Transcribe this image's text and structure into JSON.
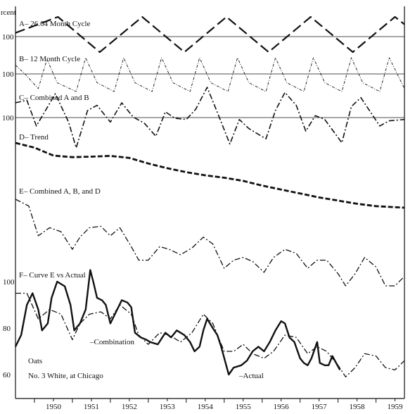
{
  "chart_data": {
    "type": "line",
    "y_unit_label": "rcent",
    "x_axis": {
      "range": [
        1949.5,
        1959.75
      ],
      "tick_labels": [
        "1950",
        "1951",
        "1952",
        "1953",
        "1954",
        "1955",
        "1956",
        "1957",
        "1958",
        "1959"
      ]
    },
    "panels": [
      {
        "id": "A",
        "label": "A–  26.64 Month Cycle",
        "baseline_label": "100",
        "style": "long-dash",
        "stroke_width": 2.2,
        "points": [
          [
            1949.5,
            110
          ],
          [
            1950.62,
            125
          ],
          [
            1951.72,
            92
          ],
          [
            1952.84,
            125
          ],
          [
            1953.95,
            92
          ],
          [
            1955.06,
            125
          ],
          [
            1956.17,
            92
          ],
          [
            1957.28,
            125
          ],
          [
            1958.39,
            92
          ],
          [
            1959.5,
            125
          ],
          [
            1959.75,
            118
          ]
        ]
      },
      {
        "id": "B",
        "label": "B–  12 Month Cycle",
        "baseline_label": "100",
        "style": "dot-dash-thin",
        "stroke_width": 0.9,
        "points": [
          [
            1949.5,
            108
          ],
          [
            1949.75,
            102
          ],
          [
            1950.1,
            92
          ],
          [
            1950.33,
            112
          ],
          [
            1950.6,
            96
          ],
          [
            1951.1,
            90
          ],
          [
            1951.35,
            113
          ],
          [
            1951.65,
            96
          ],
          [
            1952.1,
            90
          ],
          [
            1952.35,
            113
          ],
          [
            1952.65,
            96
          ],
          [
            1953.1,
            90
          ],
          [
            1953.35,
            113
          ],
          [
            1953.65,
            96
          ],
          [
            1954.1,
            90
          ],
          [
            1954.35,
            113
          ],
          [
            1954.65,
            96
          ],
          [
            1955.1,
            90
          ],
          [
            1955.35,
            113
          ],
          [
            1955.65,
            96
          ],
          [
            1956.1,
            90
          ],
          [
            1956.35,
            113
          ],
          [
            1956.65,
            96
          ],
          [
            1957.1,
            90
          ],
          [
            1957.35,
            113
          ],
          [
            1957.65,
            96
          ],
          [
            1958.1,
            90
          ],
          [
            1958.35,
            113
          ],
          [
            1958.65,
            96
          ],
          [
            1959.1,
            90
          ],
          [
            1959.35,
            113
          ],
          [
            1959.75,
            92
          ]
        ]
      },
      {
        "id": "C",
        "label": "C–  Combined A and B",
        "baseline_label": "100",
        "style": "dash-dot",
        "stroke_width": 1.6,
        "points": [
          [
            1949.5,
            118
          ],
          [
            1949.8,
            120
          ],
          [
            1950.05,
            100
          ],
          [
            1950.35,
            115
          ],
          [
            1950.55,
            125
          ],
          [
            1950.9,
            103
          ],
          [
            1951.1,
            83
          ],
          [
            1951.4,
            112
          ],
          [
            1951.65,
            116
          ],
          [
            1952.0,
            103
          ],
          [
            1952.3,
            118
          ],
          [
            1952.6,
            107
          ],
          [
            1952.9,
            102
          ],
          [
            1953.2,
            92
          ],
          [
            1953.45,
            111
          ],
          [
            1953.7,
            106
          ],
          [
            1954.0,
            105
          ],
          [
            1954.25,
            113
          ],
          [
            1954.55,
            130
          ],
          [
            1954.8,
            112
          ],
          [
            1955.15,
            86
          ],
          [
            1955.4,
            105
          ],
          [
            1955.65,
            98
          ],
          [
            1956.1,
            90
          ],
          [
            1956.35,
            112
          ],
          [
            1956.6,
            126
          ],
          [
            1956.9,
            116
          ],
          [
            1957.15,
            96
          ],
          [
            1957.4,
            108
          ],
          [
            1957.65,
            105
          ],
          [
            1958.1,
            87
          ],
          [
            1958.35,
            115
          ],
          [
            1958.6,
            122
          ],
          [
            1959.1,
            100
          ],
          [
            1959.35,
            104
          ],
          [
            1959.75,
            105
          ]
        ]
      },
      {
        "id": "D",
        "label": "D–  Trend",
        "baseline_label": "",
        "style": "thick-dash",
        "stroke_width": 2.8,
        "points": [
          [
            1949.5,
            100
          ],
          [
            1950.0,
            97
          ],
          [
            1950.5,
            92
          ],
          [
            1951.0,
            91
          ],
          [
            1951.5,
            91.3
          ],
          [
            1952.0,
            91.8
          ],
          [
            1952.5,
            90.5
          ],
          [
            1953.0,
            87
          ],
          [
            1953.5,
            84
          ],
          [
            1954.0,
            81.5
          ],
          [
            1954.5,
            79.5
          ],
          [
            1955.0,
            78
          ],
          [
            1955.5,
            76
          ],
          [
            1956.0,
            73
          ],
          [
            1956.5,
            70.5
          ],
          [
            1957.0,
            68
          ],
          [
            1957.5,
            65.5
          ],
          [
            1958.0,
            63.5
          ],
          [
            1958.5,
            61.5
          ],
          [
            1959.0,
            60
          ],
          [
            1959.75,
            59
          ]
        ]
      },
      {
        "id": "E",
        "label": "E–  Combined A, B, and D",
        "baseline_label": "",
        "style": "dash-dot",
        "stroke_width": 1.3,
        "points": [
          [
            1949.5,
            125
          ],
          [
            1949.85,
            120
          ],
          [
            1950.1,
            98
          ],
          [
            1950.4,
            104
          ],
          [
            1950.7,
            101
          ],
          [
            1951.0,
            88
          ],
          [
            1951.2,
            97
          ],
          [
            1951.45,
            104
          ],
          [
            1951.75,
            105
          ],
          [
            1952.0,
            98
          ],
          [
            1952.25,
            104
          ],
          [
            1952.55,
            90
          ],
          [
            1952.75,
            80
          ],
          [
            1953.0,
            80
          ],
          [
            1953.3,
            90
          ],
          [
            1953.55,
            88
          ],
          [
            1953.85,
            84
          ],
          [
            1954.15,
            89
          ],
          [
            1954.45,
            97
          ],
          [
            1954.7,
            92
          ],
          [
            1955.0,
            74
          ],
          [
            1955.25,
            80
          ],
          [
            1955.5,
            82
          ],
          [
            1955.75,
            79
          ],
          [
            1956.05,
            71
          ],
          [
            1956.3,
            82
          ],
          [
            1956.6,
            88
          ],
          [
            1956.9,
            85
          ],
          [
            1957.2,
            74
          ],
          [
            1957.45,
            80
          ],
          [
            1957.7,
            80
          ],
          [
            1958.0,
            70
          ],
          [
            1958.2,
            61
          ],
          [
            1958.45,
            70
          ],
          [
            1958.7,
            82
          ],
          [
            1959.0,
            75
          ],
          [
            1959.25,
            61
          ],
          [
            1959.5,
            61
          ],
          [
            1959.75,
            68
          ]
        ]
      }
    ],
    "panel_f": {
      "label": "F–  Curve E vs Actual",
      "y_range": [
        55,
        105
      ],
      "y_tick_labels": [
        "100",
        "80",
        "60"
      ],
      "y_tick_values": [
        100,
        80,
        60
      ],
      "commodity_label": "Oats",
      "location_label": "No. 3 White, at Chicago",
      "series": [
        {
          "name": "Combination",
          "annotation": "–Combination",
          "style": "dash-dot",
          "stroke_width": 1.3,
          "points": [
            [
              1949.5,
              95
            ],
            [
              1949.8,
              95
            ],
            [
              1950.1,
              84
            ],
            [
              1950.4,
              88
            ],
            [
              1950.7,
              86
            ],
            [
              1951.0,
              75
            ],
            [
              1951.2,
              82
            ],
            [
              1951.45,
              86
            ],
            [
              1951.75,
              87
            ],
            [
              1952.0,
              84
            ],
            [
              1952.25,
              90
            ],
            [
              1952.55,
              86
            ],
            [
              1952.75,
              77
            ],
            [
              1953.0,
              73
            ],
            [
              1953.3,
              78
            ],
            [
              1953.55,
              77
            ],
            [
              1953.85,
              74
            ],
            [
              1954.15,
              78
            ],
            [
              1954.45,
              86
            ],
            [
              1954.7,
              82
            ],
            [
              1955.0,
              70
            ],
            [
              1955.25,
              70
            ],
            [
              1955.5,
              73
            ],
            [
              1955.75,
              69
            ],
            [
              1956.05,
              67
            ],
            [
              1956.3,
              70
            ],
            [
              1956.6,
              77
            ],
            [
              1956.9,
              76
            ],
            [
              1957.2,
              69
            ],
            [
              1957.45,
              72
            ],
            [
              1957.7,
              70
            ],
            [
              1958.0,
              64
            ],
            [
              1958.2,
              59
            ],
            [
              1958.45,
              63
            ],
            [
              1958.7,
              69
            ],
            [
              1959.0,
              68
            ],
            [
              1959.25,
              63
            ],
            [
              1959.5,
              62
            ],
            [
              1959.75,
              66
            ]
          ]
        },
        {
          "name": "Actual",
          "annotation": "–Actual",
          "style": "solid",
          "stroke_width": 2.4,
          "points": [
            [
              1949.5,
              72
            ],
            [
              1949.65,
              77
            ],
            [
              1949.8,
              90
            ],
            [
              1949.95,
              95
            ],
            [
              1950.1,
              88
            ],
            [
              1950.2,
              79
            ],
            [
              1950.35,
              82
            ],
            [
              1950.45,
              93
            ],
            [
              1950.6,
              100
            ],
            [
              1950.8,
              98
            ],
            [
              1950.95,
              90
            ],
            [
              1951.05,
              79
            ],
            [
              1951.2,
              82
            ],
            [
              1951.35,
              88
            ],
            [
              1951.47,
              105
            ],
            [
              1951.55,
              100
            ],
            [
              1951.65,
              93
            ],
            [
              1951.78,
              92
            ],
            [
              1951.88,
              90
            ],
            [
              1952.0,
              82
            ],
            [
              1952.15,
              87
            ],
            [
              1952.3,
              92
            ],
            [
              1952.45,
              91
            ],
            [
              1952.55,
              89
            ],
            [
              1952.65,
              78
            ],
            [
              1952.8,
              76
            ],
            [
              1952.95,
              75
            ],
            [
              1953.05,
              74
            ],
            [
              1953.25,
              73
            ],
            [
              1953.45,
              78
            ],
            [
              1953.6,
              76
            ],
            [
              1953.75,
              79
            ],
            [
              1953.95,
              77
            ],
            [
              1954.1,
              74
            ],
            [
              1954.22,
              70
            ],
            [
              1954.35,
              72
            ],
            [
              1954.45,
              79
            ],
            [
              1954.55,
              84
            ],
            [
              1954.7,
              80
            ],
            [
              1954.82,
              77
            ],
            [
              1954.92,
              72
            ],
            [
              1955.02,
              66
            ],
            [
              1955.12,
              60
            ],
            [
              1955.25,
              63
            ],
            [
              1955.45,
              64
            ],
            [
              1955.6,
              66
            ],
            [
              1955.75,
              70
            ],
            [
              1955.9,
              72
            ],
            [
              1956.05,
              70
            ],
            [
              1956.2,
              74
            ],
            [
              1956.35,
              79
            ],
            [
              1956.5,
              83
            ],
            [
              1956.6,
              82
            ],
            [
              1956.72,
              76
            ],
            [
              1956.85,
              74
            ],
            [
              1957.0,
              67
            ],
            [
              1957.1,
              65
            ],
            [
              1957.2,
              64
            ],
            [
              1957.3,
              67
            ],
            [
              1957.45,
              74
            ],
            [
              1957.52,
              65
            ],
            [
              1957.65,
              64
            ],
            [
              1957.75,
              64
            ],
            [
              1957.85,
              68
            ],
            [
              1957.95,
              65
            ],
            [
              1958.05,
              62
            ]
          ]
        }
      ]
    }
  }
}
